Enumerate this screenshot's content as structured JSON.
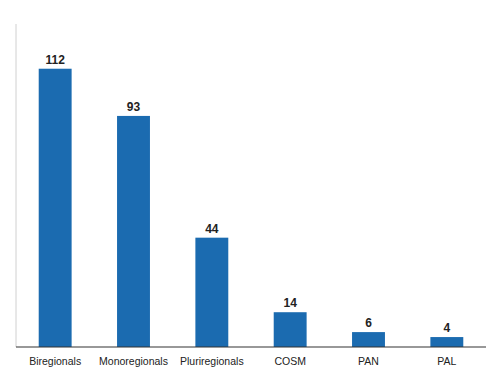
{
  "chart_data": {
    "type": "bar",
    "categories": [
      "Biregionals",
      "Monoregionals",
      "Pluriregionals",
      "COSM",
      "PAN",
      "PAL"
    ],
    "values": [
      112,
      93,
      44,
      14,
      6,
      4
    ],
    "color": "#1B6BB0",
    "ylim": [
      0,
      130
    ],
    "grid": false,
    "data_labels": true,
    "tick_labels": "x"
  }
}
